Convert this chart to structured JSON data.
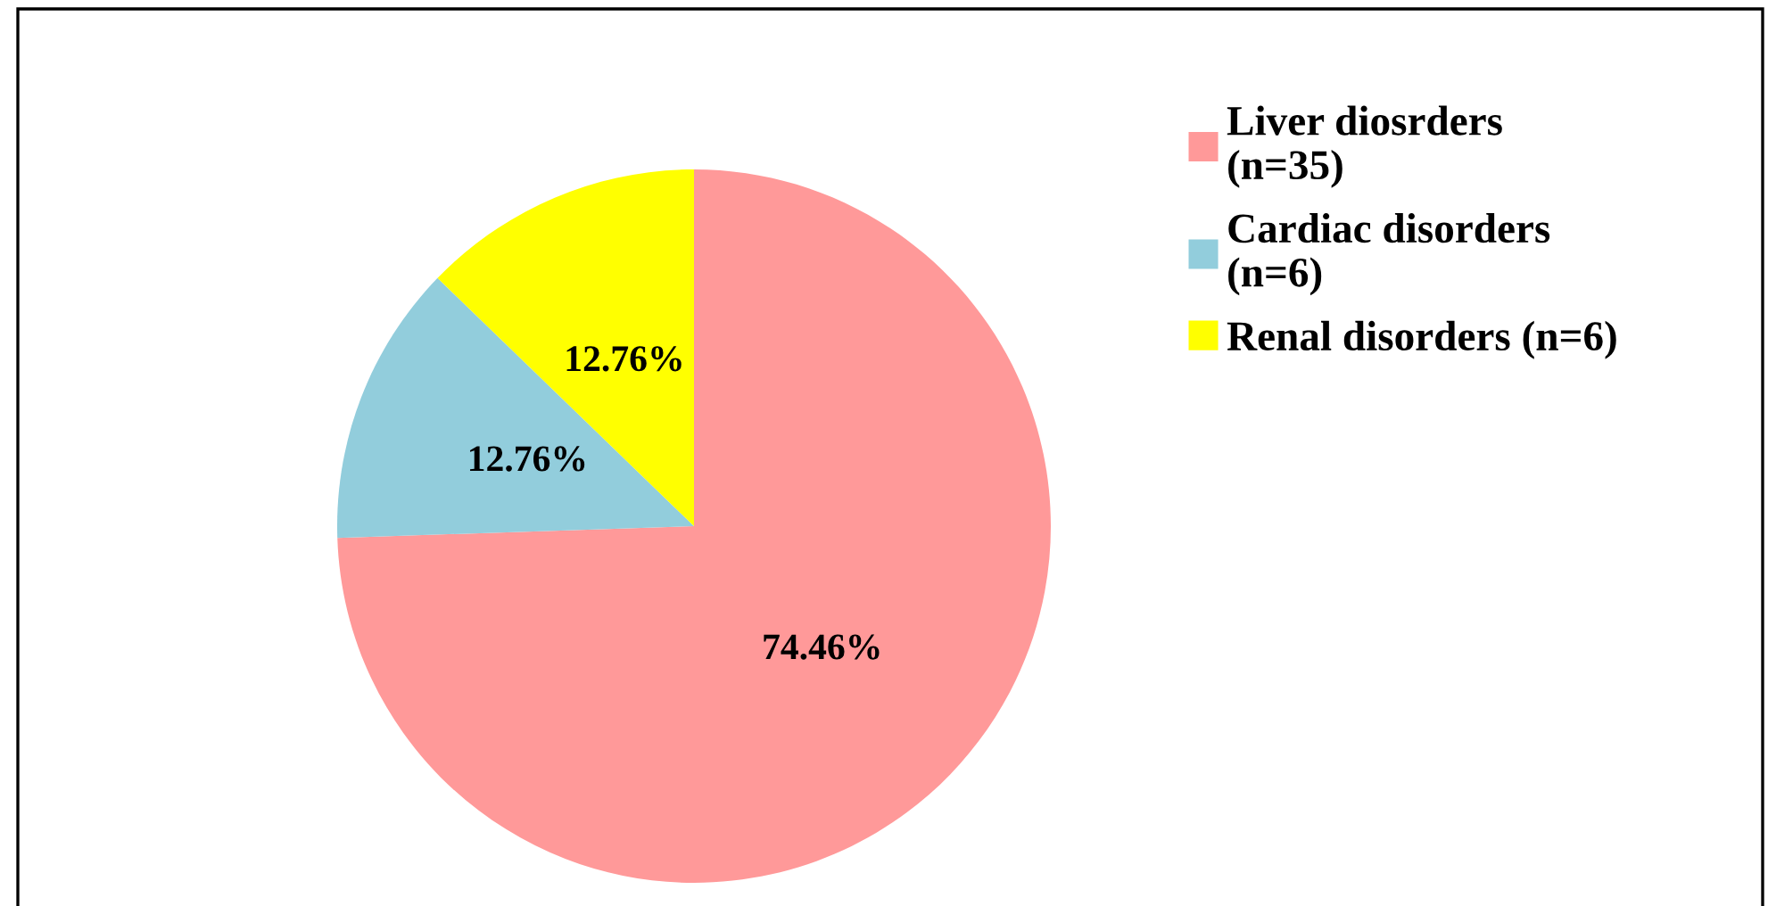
{
  "chart_data": {
    "type": "pie",
    "categories": [
      "Liver diosrders\n(n=35)",
      "Cardiac disorders\n(n=6)",
      "Renal disorders (n=6)"
    ],
    "values": [
      74.46,
      12.76,
      12.76
    ],
    "colors": [
      "#ff9999",
      "#92cddc",
      "#ffff00"
    ],
    "value_labels": [
      "74.46%",
      "12.76%",
      "12.76%"
    ],
    "legend": "right"
  }
}
